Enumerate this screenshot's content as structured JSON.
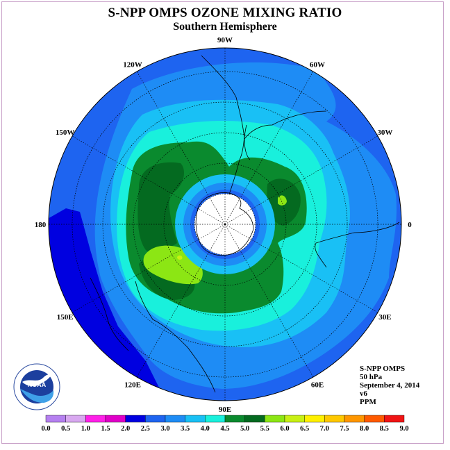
{
  "title": "S-NPP OMPS OZONE MIXING RATIO",
  "subtitle": "Southern Hemisphere",
  "longitude_labels": [
    {
      "text": "90W",
      "angle": 0
    },
    {
      "text": "60W",
      "angle": 30
    },
    {
      "text": "30W",
      "angle": 60
    },
    {
      "text": "0",
      "angle": 90
    },
    {
      "text": "30E",
      "angle": 120
    },
    {
      "text": "60E",
      "angle": 150
    },
    {
      "text": "90E",
      "angle": 180
    },
    {
      "text": "120E",
      "angle": 210
    },
    {
      "text": "150E",
      "angle": 240
    },
    {
      "text": "180",
      "angle": 270
    },
    {
      "text": "150W",
      "angle": 300
    },
    {
      "text": "120W",
      "angle": 330
    }
  ],
  "info": {
    "instrument": "S-NPP OMPS",
    "level": "50 hPa",
    "date": "September 4, 2014",
    "version": "v6",
    "units": "PPM"
  },
  "logo": {
    "text": "NOAA"
  },
  "colorbar": {
    "ticks": [
      "0.0",
      "0.5",
      "1.0",
      "1.5",
      "2.0",
      "2.5",
      "3.0",
      "3.5",
      "4.0",
      "4.5",
      "5.0",
      "5.5",
      "6.0",
      "6.5",
      "7.0",
      "7.5",
      "8.0",
      "8.5",
      "9.0"
    ],
    "colors": [
      "#b580f0",
      "#d8a8f0",
      "#ff20e8",
      "#e000c8",
      "#0000e0",
      "#1e64f0",
      "#1e8cf5",
      "#19c0f5",
      "#19f0dc",
      "#0a8a2e",
      "#046a20",
      "#8ce614",
      "#c8f014",
      "#fff000",
      "#ffc800",
      "#ff9600",
      "#ff5a00",
      "#f01414",
      "#966446"
    ]
  },
  "colors": {
    "c20": "#1e64f0",
    "c25": "#1e8cf5",
    "c30": "#19c0f5",
    "c35": "#19f0dc",
    "c40": "#0a8a2e",
    "c45": "#046a20",
    "c50": "#8ce614",
    "c55": "#c8f014",
    "c15": "#0000e0"
  }
}
